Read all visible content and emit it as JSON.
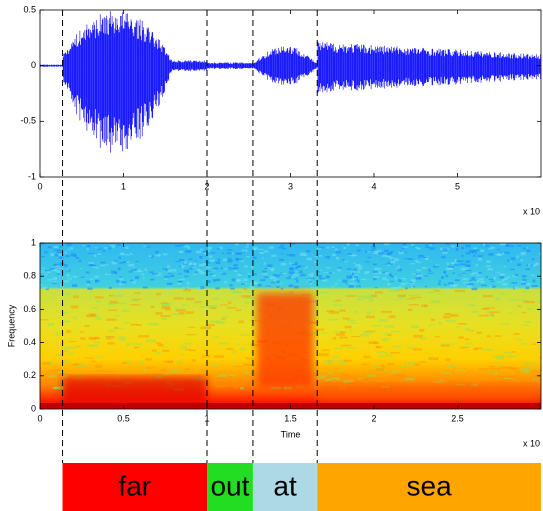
{
  "chart_data": [
    {
      "type": "line",
      "xlim": [
        0,
        6
      ],
      "ylim": [
        -1,
        0.5
      ],
      "xticks": [
        0,
        1,
        2,
        3,
        4,
        5
      ],
      "yticks": [
        -1,
        -0.5,
        0,
        0.5
      ],
      "x_exponent_label": "x 10",
      "color": "#0000ff"
    },
    {
      "type": "heatmap",
      "xlabel": "Time",
      "ylabel": "Frequency",
      "xlim": [
        0,
        3
      ],
      "ylim": [
        0,
        1
      ],
      "xticks": [
        0,
        0.5,
        1,
        1.5,
        2,
        2.5
      ],
      "yticks": [
        0,
        0.2,
        0.4,
        0.6,
        0.8,
        1
      ],
      "x_exponent_label": "x 10"
    }
  ],
  "boundaries": [
    0.27,
    2,
    2.55,
    3.32
  ],
  "segments": [
    {
      "label": "far",
      "color": "#ff0000"
    },
    {
      "label": "out",
      "color": "#22dd22"
    },
    {
      "label": "at",
      "color": "#add8e6"
    },
    {
      "label": "sea",
      "color": "#ffa500"
    }
  ]
}
